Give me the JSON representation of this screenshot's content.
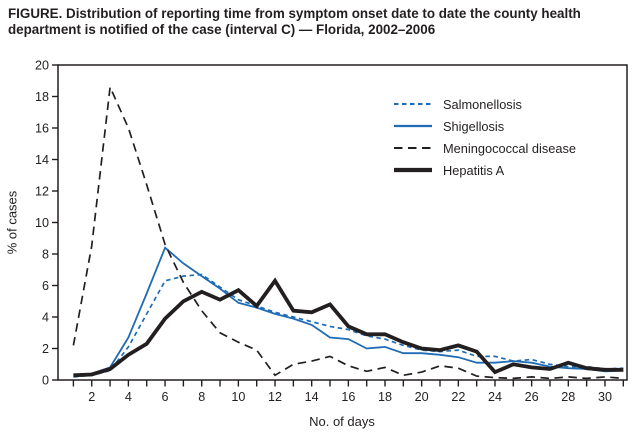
{
  "title": "FIGURE. Distribution of reporting time from symptom onset date to date the county health department is notified of the case (interval C) — Florida, 2002–2006",
  "colors": {
    "blue": "#1f6cb5",
    "black": "#231f20"
  },
  "chart_data": {
    "type": "line",
    "title": "FIGURE. Distribution of reporting time from symptom onset date to date the county health department is notified of the case (interval C) — Florida, 2002–2006",
    "xlabel": "No. of days",
    "ylabel": "% of cases",
    "xlim": [
      1,
      31
    ],
    "ylim": [
      0,
      20
    ],
    "grid": false,
    "legend_position": "upper right inside",
    "y_ticks": [
      0,
      2,
      4,
      6,
      8,
      10,
      12,
      14,
      16,
      18,
      20
    ],
    "x_minor_tick_every": 1,
    "x_tick_labels": [
      2,
      4,
      6,
      8,
      10,
      12,
      14,
      16,
      18,
      20,
      22,
      24,
      26,
      28,
      30
    ],
    "x": [
      1,
      2,
      3,
      4,
      5,
      6,
      7,
      8,
      9,
      10,
      11,
      12,
      13,
      14,
      15,
      16,
      17,
      18,
      19,
      20,
      21,
      22,
      23,
      24,
      25,
      26,
      27,
      28,
      29,
      30,
      31
    ],
    "series": [
      {
        "name": "Salmonellosis",
        "color": "#1f6cb5",
        "line_style": "dashed_short",
        "line_width": 1.7,
        "values": [
          0.2,
          0.3,
          0.6,
          2.1,
          4.2,
          6.3,
          6.6,
          6.7,
          5.9,
          5.1,
          4.7,
          4.3,
          4.0,
          3.7,
          3.4,
          3.2,
          2.8,
          2.6,
          2.2,
          1.9,
          1.8,
          1.9,
          1.5,
          1.5,
          1.2,
          1.3,
          1.0,
          0.85,
          0.85,
          0.7,
          0.75
        ]
      },
      {
        "name": "Shigellosis",
        "color": "#1f6cb5",
        "line_style": "solid",
        "line_width": 1.8,
        "values": [
          0.3,
          0.4,
          0.8,
          2.7,
          5.5,
          8.4,
          7.4,
          6.6,
          5.8,
          4.9,
          4.6,
          4.2,
          3.9,
          3.5,
          2.7,
          2.6,
          2.0,
          2.1,
          1.7,
          1.7,
          1.6,
          1.45,
          1.1,
          1.1,
          1.2,
          1.1,
          0.85,
          0.75,
          0.7,
          0.55,
          0.6
        ]
      },
      {
        "name": "Meningococcal disease",
        "color": "#231f20",
        "line_style": "dashed_long",
        "line_width": 1.7,
        "values": [
          2.2,
          8.5,
          18.6,
          16.0,
          12.4,
          8.6,
          6.2,
          4.4,
          3.0,
          2.4,
          1.9,
          0.3,
          1.0,
          1.2,
          1.5,
          0.9,
          0.55,
          0.8,
          0.3,
          0.5,
          0.9,
          0.75,
          0.25,
          0.15,
          0.1,
          0.2,
          0.1,
          0.2,
          0.1,
          0.2,
          0.1
        ]
      },
      {
        "name": "Hepatitis A",
        "color": "#231f20",
        "line_style": "solid",
        "line_width": 3.8,
        "values": [
          0.3,
          0.35,
          0.7,
          1.6,
          2.3,
          3.9,
          5.0,
          5.6,
          5.1,
          5.7,
          4.7,
          6.3,
          4.4,
          4.3,
          4.8,
          3.4,
          2.9,
          2.9,
          2.4,
          2.0,
          1.9,
          2.2,
          1.8,
          0.5,
          1.0,
          0.8,
          0.7,
          1.1,
          0.75,
          0.65,
          0.65
        ]
      }
    ]
  }
}
